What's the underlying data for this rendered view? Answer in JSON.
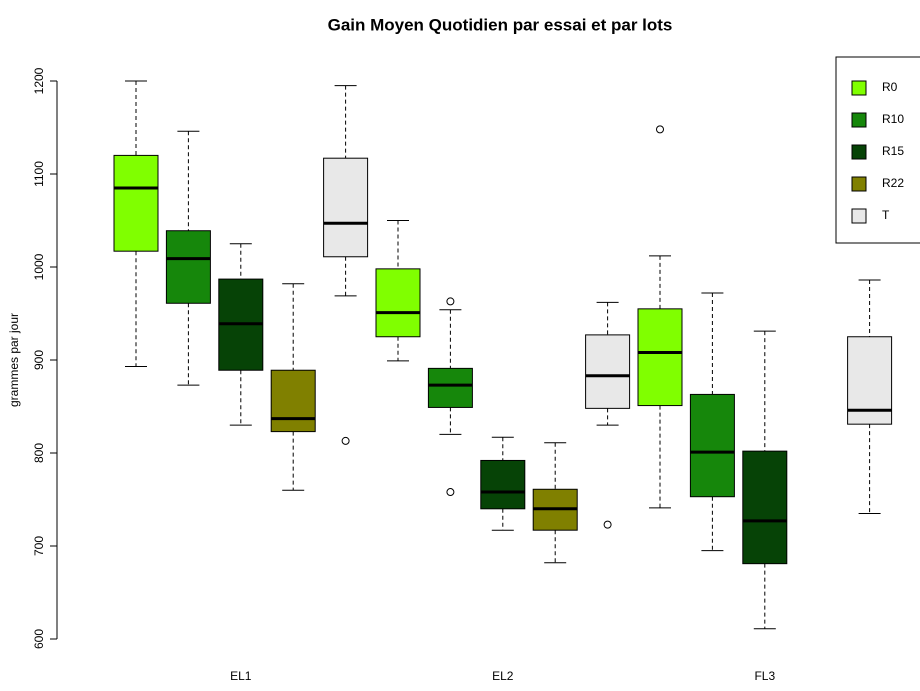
{
  "chart_data": {
    "type": "box",
    "title": "Gain Moyen Quotidien par essai et par lots",
    "ylabel": "grammes par jour",
    "categories": [
      "EL1",
      "EL2",
      "FL3"
    ],
    "ylim": [
      600,
      1200
    ],
    "yticks": [
      600,
      700,
      800,
      900,
      1000,
      1100,
      1200
    ],
    "legend": "top-right",
    "series": [
      {
        "name": "R0",
        "color": "#80ff00",
        "whislo": [
          893,
          899,
          741
        ],
        "q1": [
          1017,
          925,
          851
        ],
        "median": [
          1085,
          951,
          908
        ],
        "q3": [
          1120,
          998,
          955
        ],
        "whishi": [
          1200,
          1050,
          1012
        ],
        "outliers": [
          [],
          [],
          [
            1148
          ]
        ]
      },
      {
        "name": "R10",
        "color": "#16870b",
        "whislo": [
          873,
          820,
          695
        ],
        "q1": [
          961,
          849,
          753
        ],
        "median": [
          1009,
          873,
          801
        ],
        "q3": [
          1039,
          891,
          863
        ],
        "whishi": [
          1146,
          954,
          972
        ],
        "outliers": [
          [],
          [
            963,
            758
          ],
          []
        ]
      },
      {
        "name": "R15",
        "color": "#064306",
        "whislo": [
          830,
          717,
          611
        ],
        "q1": [
          889,
          740,
          681
        ],
        "median": [
          939,
          758,
          727
        ],
        "q3": [
          987,
          792,
          802
        ],
        "whishi": [
          1025,
          817,
          931
        ],
        "outliers": [
          [],
          [],
          []
        ]
      },
      {
        "name": "R22",
        "color": "#808000",
        "whislo": [
          760,
          682,
          null
        ],
        "q1": [
          823,
          717,
          null
        ],
        "median": [
          837,
          740,
          null
        ],
        "q3": [
          889,
          761,
          null
        ],
        "whishi": [
          982,
          811,
          null
        ],
        "outliers": [
          [],
          [],
          []
        ]
      },
      {
        "name": "T",
        "color": "#e8e8e8",
        "whislo": [
          969,
          830,
          735
        ],
        "q1": [
          1011,
          848,
          831
        ],
        "median": [
          1047,
          883,
          846
        ],
        "q3": [
          1117,
          927,
          925
        ],
        "whishi": [
          1195,
          962,
          986
        ],
        "outliers": [
          [
            813
          ],
          [
            723
          ],
          []
        ]
      }
    ]
  }
}
